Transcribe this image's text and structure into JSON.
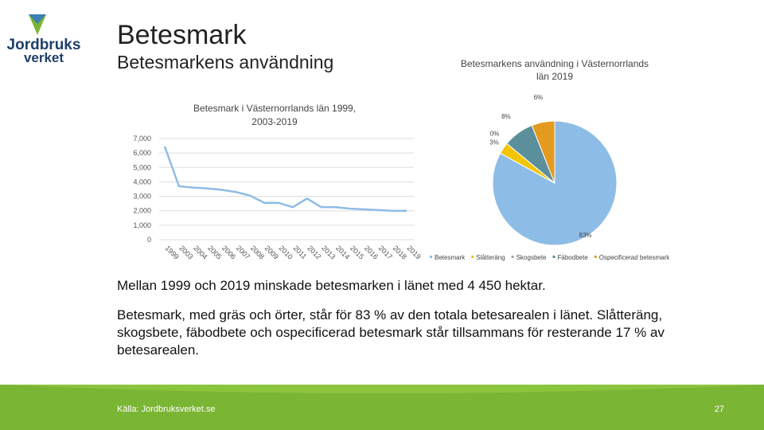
{
  "logo": {
    "line1": "Jordbruks",
    "line2": "verket"
  },
  "header": {
    "title": "Betesmark",
    "subtitle": "Betesmarkens användning"
  },
  "chart_data": [
    {
      "type": "line",
      "title": "Betesmark i Västernorrlands län 1999, 2003-2019",
      "categories": [
        "1999",
        "2003",
        "2004",
        "2005",
        "2006",
        "2007",
        "2008",
        "2009",
        "2010",
        "2011",
        "2012",
        "2013",
        "2014",
        "2015",
        "2016",
        "2017",
        "2018",
        "2019"
      ],
      "values": [
        6450,
        3700,
        3600,
        3550,
        3450,
        3300,
        3050,
        2550,
        2550,
        2250,
        2850,
        2250,
        2250,
        2150,
        2100,
        2050,
        2000,
        2000
      ],
      "color": "#8fbce6",
      "ylim": [
        0,
        7000
      ],
      "yticks": [
        0,
        {
          "value": 1000,
          "label": "1,000"
        },
        {
          "value": 2000,
          "label": "2,000"
        },
        {
          "value": 3000,
          "label": "3,000"
        },
        {
          "value": 4000,
          "label": "4,000"
        },
        {
          "value": 5000,
          "label": "5,000"
        },
        {
          "value": 6000,
          "label": "6,000"
        },
        {
          "value": 7000,
          "label": "7,000"
        }
      ],
      "grid": true
    },
    {
      "type": "pie",
      "title": "Betesmarkens användning i Västernorrlands län 2019",
      "categories": [
        "Betesmark",
        "Slåtteräng",
        "Skogsbete",
        "Fäbodbete",
        "Ospecificerad betesmark"
      ],
      "values": [
        83,
        3,
        0,
        8,
        6
      ],
      "value_labels": [
        "83%",
        "3%",
        "0%",
        "8%",
        "6%"
      ],
      "colors": [
        "#8dbde6",
        "#f2c500",
        "#a5a5a5",
        "#5b8f9b",
        "#e39b1f"
      ],
      "legend": "bottom"
    }
  ],
  "body": {
    "p1": "Mellan 1999 och 2019 minskade betesmarken i länet med 4 450 hektar.",
    "p2": "Betesmark, med gräs och örter, står för 83 % av den totala betesarealen i länet. Slåtteräng, skogsbete, fäbodbete och ospecificerad betesmark står tillsammans för resterande 17 % av betesarealen."
  },
  "footer": {
    "source": "Källa: Jordbruksverket.se",
    "page": "27"
  }
}
